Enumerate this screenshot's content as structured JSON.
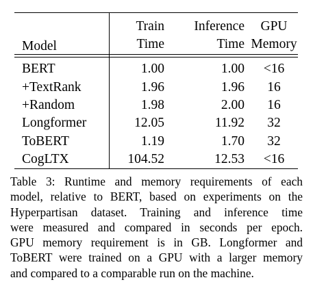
{
  "table": {
    "headers": {
      "model": "Model",
      "train_line1": "Train",
      "train_line2": "Time",
      "inference_line1": "Inference",
      "inference_line2": "Time",
      "gpu_line1": "GPU",
      "gpu_line2": "Memory"
    },
    "rows": [
      {
        "model": "BERT",
        "train_time": "1.00",
        "inference_time": "1.00",
        "gpu_memory": "<16"
      },
      {
        "model": "+TextRank",
        "train_time": "1.96",
        "inference_time": "1.96",
        "gpu_memory": "16"
      },
      {
        "model": "+Random",
        "train_time": "1.98",
        "inference_time": "2.00",
        "gpu_memory": "16"
      },
      {
        "model": "Longformer",
        "train_time": "12.05",
        "inference_time": "11.92",
        "gpu_memory": "32"
      },
      {
        "model": "ToBERT",
        "train_time": "1.19",
        "inference_time": "1.70",
        "gpu_memory": "32"
      },
      {
        "model": "CogLTX",
        "train_time": "104.52",
        "inference_time": "12.53",
        "gpu_memory": "<16"
      }
    ]
  },
  "caption": {
    "lines": [
      "Table 3: Runtime and memory requirements of each",
      "model, relative to BERT, based on experiments on the",
      "Hyperpartisan dataset. Training and inference time",
      "were measured and compared in seconds per epoch.",
      "GPU memory requirement is in GB. Longformer and",
      "ToBERT were trained on a GPU with a larger memory",
      "and compared to a comparable run on the machine."
    ]
  }
}
